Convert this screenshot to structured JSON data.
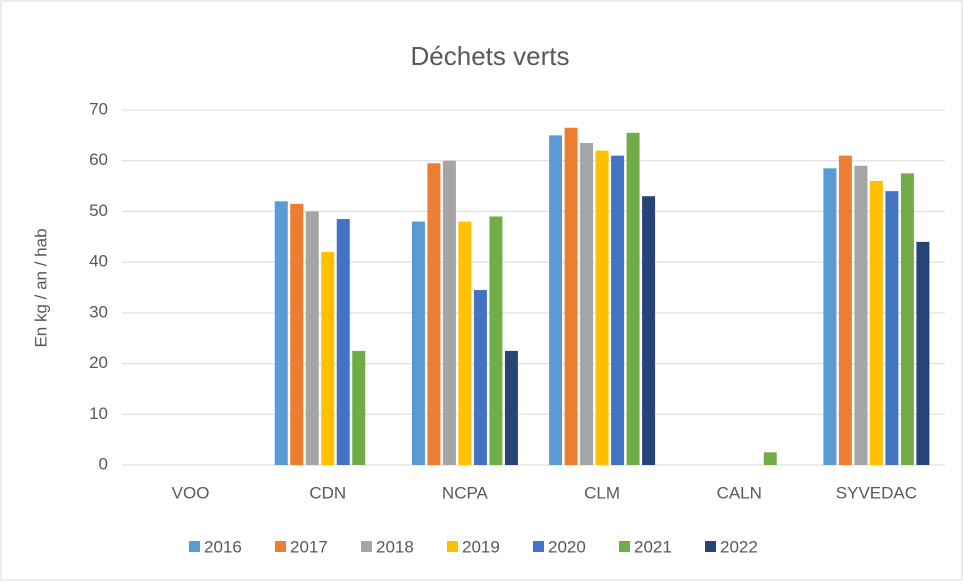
{
  "chart_data": {
    "type": "bar",
    "title": "Déchets verts",
    "y_label": "En kg / an / hab",
    "categories": [
      "VOO",
      "CDN",
      "NCPA",
      "CLM",
      "CALN",
      "SYVEDAC"
    ],
    "series": [
      {
        "name": "2016",
        "color": "#5b9bd5",
        "values": [
          null,
          52,
          48,
          65,
          null,
          58.5
        ]
      },
      {
        "name": "2017",
        "color": "#ed7d31",
        "values": [
          null,
          51.5,
          59.5,
          66.5,
          null,
          61
        ]
      },
      {
        "name": "2018",
        "color": "#a5a5a5",
        "values": [
          null,
          50,
          60,
          63.5,
          null,
          59
        ]
      },
      {
        "name": "2019",
        "color": "#ffc000",
        "values": [
          null,
          42,
          48,
          62,
          null,
          56
        ]
      },
      {
        "name": "2020",
        "color": "#4472c4",
        "values": [
          null,
          48.5,
          34.5,
          61,
          null,
          54
        ]
      },
      {
        "name": "2021",
        "color": "#70ad47",
        "values": [
          null,
          22.5,
          49,
          65.5,
          2.5,
          57.5
        ]
      },
      {
        "name": "2022",
        "color": "#264478",
        "values": [
          null,
          null,
          22.5,
          53,
          null,
          44
        ]
      }
    ],
    "ylim": [
      0,
      70
    ],
    "yticks": [
      0,
      10,
      20,
      30,
      40,
      50,
      60,
      70
    ],
    "grid": true,
    "legend": "bottom"
  }
}
